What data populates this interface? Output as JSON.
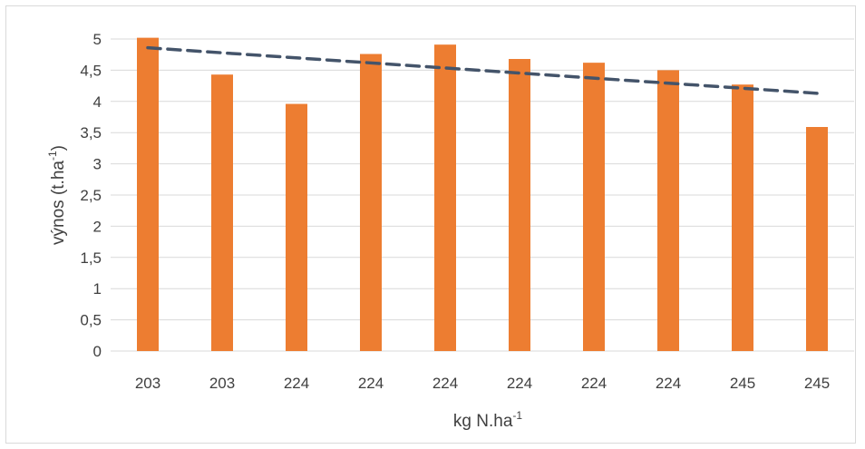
{
  "chart_data": {
    "type": "bar",
    "categories": [
      "203",
      "203",
      "224",
      "224",
      "224",
      "224",
      "224",
      "224",
      "245",
      "245"
    ],
    "values": [
      5.02,
      4.43,
      3.96,
      4.76,
      4.91,
      4.68,
      4.62,
      4.5,
      4.27,
      3.59
    ],
    "trendline": {
      "type": "linear",
      "start": 4.86,
      "end": 4.13,
      "color": "#44546a",
      "style": "dashed"
    },
    "bar_color": "#ed7d31",
    "ylim": [
      0,
      5
    ],
    "yticks": [
      "0",
      "0,5",
      "1",
      "1,5",
      "2",
      "2,5",
      "3",
      "3,5",
      "4",
      "4,5",
      "5"
    ],
    "ylabel": {
      "text": "výnos (t.ha",
      "sup": "-1",
      "suffix": ")"
    },
    "xlabel": {
      "text": "kg N.ha",
      "sup": "-1"
    },
    "grid": true,
    "legend": "none"
  }
}
